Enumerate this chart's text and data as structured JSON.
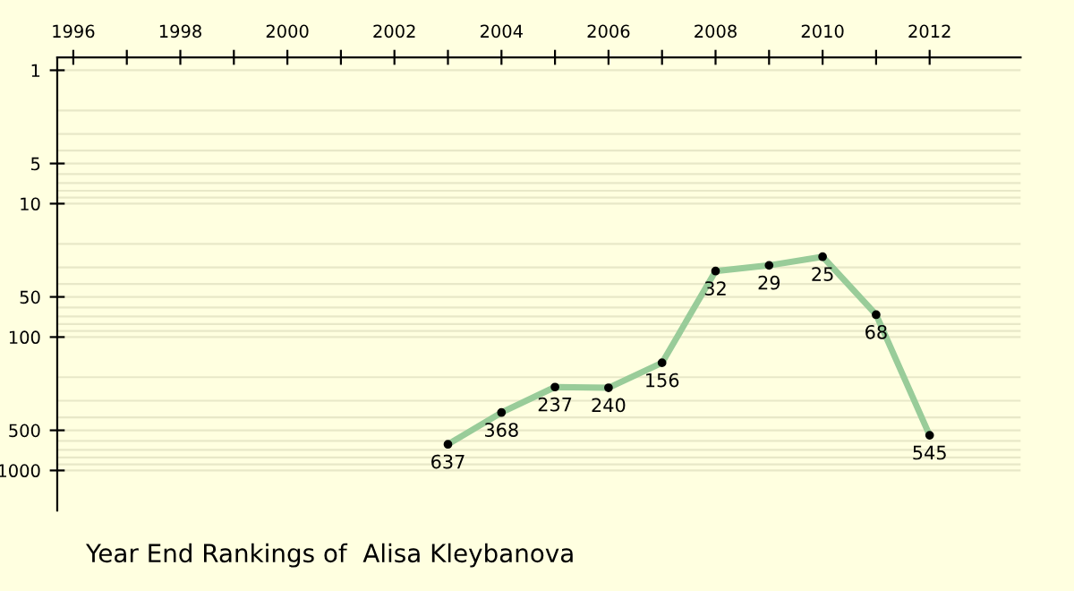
{
  "chart_data": {
    "type": "line",
    "title": "Year End Rankings of  Alisa Kleybanova",
    "x": [
      2003,
      2004,
      2005,
      2006,
      2007,
      2008,
      2009,
      2010,
      2011,
      2012
    ],
    "series": [
      {
        "color": "#99cc99",
        "values": [
          637,
          368,
          237,
          240,
          156,
          32,
          29,
          25,
          68,
          545
        ]
      }
    ],
    "data_labels": true,
    "marker": "circle",
    "line_style": "solid",
    "log": true,
    "grid": "y",
    "xlim": [
      1995.7,
      2013.7
    ],
    "xticks": [
      1996,
      {
        "value": 1997,
        "label": null
      },
      1998,
      {
        "value": 1999,
        "label": null
      },
      2000,
      {
        "value": 2001,
        "label": null
      },
      2002,
      {
        "value": 2003,
        "label": null
      },
      2004,
      {
        "value": 2005,
        "label": null
      },
      2006,
      {
        "value": 2007,
        "label": null
      },
      2008,
      {
        "value": 2009,
        "label": null
      },
      2010,
      {
        "value": 2011,
        "label": null
      },
      2012
    ],
    "ylim": [
      2000,
      0.8
    ],
    "yticks": [
      1,
      {
        "value": 2,
        "label": null
      },
      {
        "value": 3,
        "label": null
      },
      {
        "value": 4,
        "label": null
      },
      5,
      {
        "value": 6,
        "label": null
      },
      {
        "value": 7,
        "label": null
      },
      {
        "value": 8,
        "label": null
      },
      {
        "value": 9,
        "label": null
      },
      10,
      {
        "value": 20,
        "label": null
      },
      {
        "value": 30,
        "label": null
      },
      {
        "value": 40,
        "label": null
      },
      50,
      {
        "value": 60,
        "label": null
      },
      {
        "value": 70,
        "label": null
      },
      {
        "value": 80,
        "label": null
      },
      {
        "value": 90,
        "label": null
      },
      100,
      {
        "value": 200,
        "label": null
      },
      {
        "value": 300,
        "label": null
      },
      {
        "value": 400,
        "label": null
      },
      500,
      {
        "value": 600,
        "label": null
      },
      {
        "value": 700,
        "label": null
      },
      {
        "value": 800,
        "label": null
      },
      {
        "value": 900,
        "label": null
      },
      1000
    ]
  }
}
